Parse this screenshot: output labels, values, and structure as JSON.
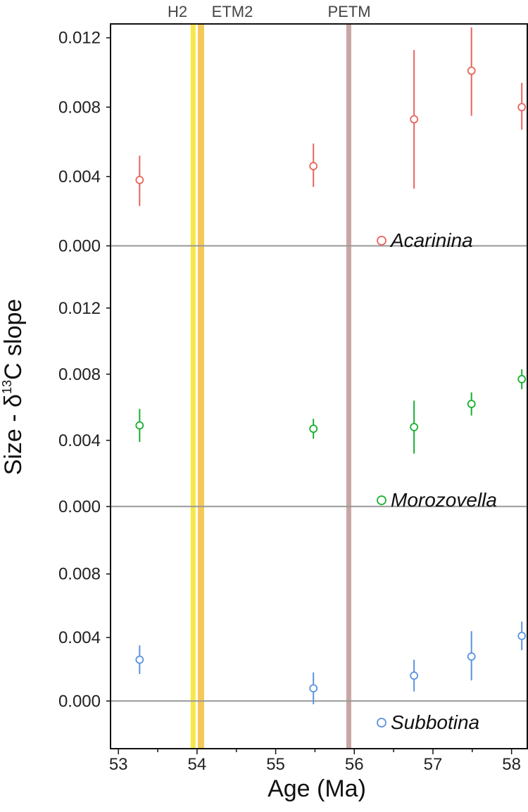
{
  "chart_data": {
    "type": "scatter",
    "xlabel": "Age (Ma)",
    "ylabel": "Size - δ13C slope",
    "ylabel_parts": {
      "prefix": "Size - δ",
      "superscript": "13",
      "suffix": "C slope"
    },
    "x_ticks": [
      "53",
      "54",
      "55",
      "56",
      "57",
      "58"
    ],
    "xlim": [
      52.9,
      58.2
    ],
    "events": [
      {
        "name": "H2",
        "age": 53.95,
        "color": "#f6e84a"
      },
      {
        "name": "ETM2",
        "age": 54.05,
        "color": "#f3c95a"
      },
      {
        "name": "PETM",
        "age": 55.93,
        "color": "#c9a6a6"
      }
    ],
    "panels": [
      {
        "name": "Acarinina",
        "color": "#e8645c",
        "ylim": [
          -0.0012,
          0.0128
        ],
        "y_ticks": [
          "0.000",
          "0.004",
          "0.008",
          "0.012"
        ],
        "points": [
          {
            "x": 53.27,
            "y": 0.0038,
            "err_low": 0.0023,
            "err_high": 0.0052
          },
          {
            "x": 55.48,
            "y": 0.0046,
            "err_low": 0.0034,
            "err_high": 0.0059
          },
          {
            "x": 56.76,
            "y": 0.0073,
            "err_low": 0.0033,
            "err_high": 0.0113
          },
          {
            "x": 57.49,
            "y": 0.0101,
            "err_low": 0.0075,
            "err_high": 0.0126
          },
          {
            "x": 58.13,
            "y": 0.008,
            "err_low": 0.0067,
            "err_high": 0.0094
          }
        ]
      },
      {
        "name": "Morozovella",
        "color": "#18b030",
        "ylim": [
          -0.0012,
          0.0145
        ],
        "y_ticks": [
          "0.000",
          "0.004",
          "0.008",
          "0.012"
        ],
        "points": [
          {
            "x": 53.27,
            "y": 0.0049,
            "err_low": 0.0039,
            "err_high": 0.0059
          },
          {
            "x": 55.48,
            "y": 0.0047,
            "err_low": 0.0041,
            "err_high": 0.0053
          },
          {
            "x": 56.76,
            "y": 0.0048,
            "err_low": 0.0032,
            "err_high": 0.0064
          },
          {
            "x": 57.49,
            "y": 0.0062,
            "err_low": 0.0055,
            "err_high": 0.0069
          },
          {
            "x": 58.13,
            "y": 0.0077,
            "err_low": 0.0071,
            "err_high": 0.0083
          }
        ]
      },
      {
        "name": "Subbotina",
        "color": "#5b93e0",
        "ylim": [
          -0.003,
          0.011
        ],
        "y_ticks": [
          "0.000",
          "0.004",
          "0.008"
        ],
        "points": [
          {
            "x": 53.27,
            "y": 0.0026,
            "err_low": 0.0017,
            "err_high": 0.0035
          },
          {
            "x": 55.48,
            "y": 0.0008,
            "err_low": -0.0002,
            "err_high": 0.0018
          },
          {
            "x": 56.76,
            "y": 0.0016,
            "err_low": 0.0006,
            "err_high": 0.0026
          },
          {
            "x": 57.49,
            "y": 0.0028,
            "err_low": 0.0013,
            "err_high": 0.0044
          },
          {
            "x": 58.13,
            "y": 0.0041,
            "err_low": 0.0032,
            "err_high": 0.005
          }
        ]
      }
    ],
    "grid": false,
    "zero_line_color": "#999999"
  }
}
